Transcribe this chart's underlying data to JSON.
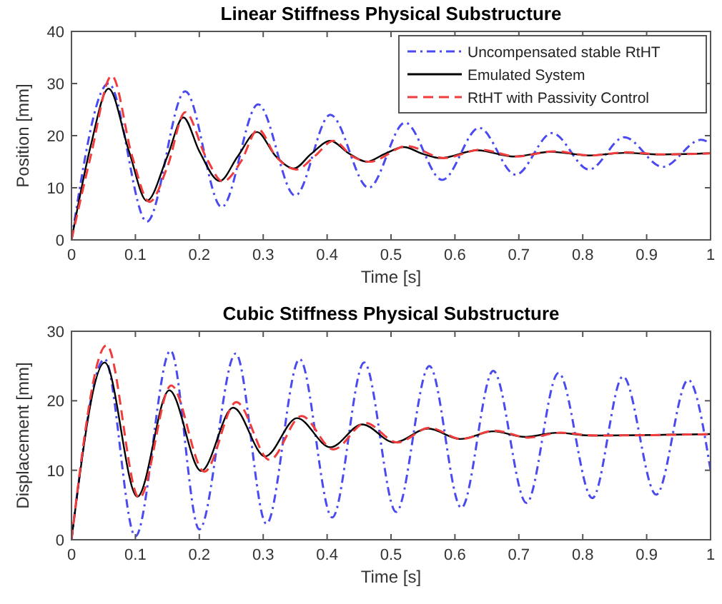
{
  "chart_data": [
    {
      "type": "line",
      "title": "Linear Stiffness Physical Substructure",
      "xlabel": "Time [s]",
      "ylabel": "Position [mm]",
      "xlim": [
        0,
        1
      ],
      "xticks": [
        0,
        0.1,
        0.2,
        0.3,
        0.4,
        0.5,
        0.6,
        0.7,
        0.8,
        0.9,
        1
      ],
      "ylim": [
        0,
        40
      ],
      "yticks": [
        0,
        10,
        20,
        30,
        40
      ],
      "legend": "top right",
      "grid": false,
      "series": [
        {
          "name": "Uncompensated stable RtHT",
          "color": "#4a4af0",
          "line_style": "dotted",
          "x": [
            0,
            0.058,
            0.118,
            0.178,
            0.235,
            0.292,
            0.35,
            0.405,
            0.465,
            0.522,
            0.58,
            0.638,
            0.695,
            0.752,
            0.81,
            0.865,
            0.925,
            0.985,
            1
          ],
          "values": [
            0,
            30,
            3.5,
            28.5,
            6.3,
            26,
            8.5,
            24,
            10,
            22.5,
            11.5,
            21.5,
            12.5,
            20.5,
            13.5,
            19.7,
            14,
            19.2,
            18.5
          ]
        },
        {
          "name": "Emulated System",
          "color": "#000000",
          "line_style": "solid",
          "x": [
            0,
            0.03,
            0.058,
            0.09,
            0.118,
            0.15,
            0.175,
            0.2,
            0.232,
            0.26,
            0.29,
            0.32,
            0.348,
            0.375,
            0.405,
            0.435,
            0.462,
            0.49,
            0.52,
            0.55,
            0.578,
            0.635,
            0.692,
            0.75,
            0.81,
            0.865,
            0.92,
            1
          ],
          "values": [
            0,
            18,
            29,
            17,
            7.5,
            16,
            23.5,
            17,
            11.3,
            16,
            20.7,
            16,
            13.7,
            16.5,
            19,
            16.5,
            15,
            16.5,
            17.8,
            16.5,
            15.7,
            17.2,
            16,
            16.9,
            16.2,
            16.7,
            16.4,
            16.6
          ]
        },
        {
          "name": "RtHT with Passivity Control",
          "color": "#f03c3c",
          "line_style": "dashed",
          "x": [
            0,
            0.03,
            0.063,
            0.095,
            0.122,
            0.15,
            0.178,
            0.21,
            0.237,
            0.265,
            0.292,
            0.32,
            0.352,
            0.38,
            0.41,
            0.44,
            0.467,
            0.525,
            0.583,
            0.64,
            0.697,
            0.755,
            0.812,
            0.87,
            0.925,
            1
          ],
          "values": [
            0,
            16,
            31.5,
            16,
            7.3,
            14,
            24.5,
            16,
            11.2,
            15,
            21.2,
            16,
            13.5,
            16,
            19,
            16,
            15,
            18,
            15.7,
            17.3,
            16,
            17,
            16.2,
            16.8,
            16.4,
            16.6
          ]
        }
      ]
    },
    {
      "type": "line",
      "title": "Cubic Stiffness Physical Substructure",
      "xlabel": "Time [s]",
      "ylabel": "Displacement [mm]",
      "xlim": [
        0,
        1
      ],
      "xticks": [
        0,
        0.1,
        0.2,
        0.3,
        0.4,
        0.5,
        0.6,
        0.7,
        0.8,
        0.9,
        1
      ],
      "ylim": [
        0,
        30
      ],
      "yticks": [
        0,
        10,
        20,
        30
      ],
      "grid": false,
      "series": [
        {
          "color": "#4a4af0",
          "line_style": "dotted",
          "x": [
            0,
            0.052,
            0.1,
            0.155,
            0.2,
            0.257,
            0.305,
            0.357,
            0.408,
            0.458,
            0.508,
            0.56,
            0.61,
            0.66,
            0.712,
            0.762,
            0.815,
            0.863,
            0.915,
            0.965,
            1
          ],
          "values": [
            0,
            26,
            0.5,
            27.2,
            1.5,
            26.8,
            2.3,
            26,
            3.2,
            25.5,
            4,
            25,
            4.6,
            24.3,
            5.3,
            24,
            6,
            23.5,
            6.5,
            23,
            10
          ]
        },
        {
          "color": "#000000",
          "line_style": "solid",
          "x": [
            0,
            0.052,
            0.103,
            0.153,
            0.203,
            0.253,
            0.303,
            0.353,
            0.405,
            0.455,
            0.505,
            0.558,
            0.608,
            0.66,
            0.71,
            0.76,
            0.81,
            1
          ],
          "values": [
            0,
            25.5,
            6.2,
            21.5,
            9.9,
            19,
            12,
            17.5,
            13.3,
            16.6,
            14,
            16,
            14.5,
            15.6,
            14.8,
            15.4,
            15,
            15.2
          ]
        },
        {
          "color": "#f03c3c",
          "line_style": "dashed",
          "x": [
            0,
            0.055,
            0.106,
            0.156,
            0.208,
            0.258,
            0.31,
            0.36,
            0.41,
            0.46,
            0.51,
            0.56,
            0.61,
            0.662,
            0.715,
            0.765,
            0.82,
            1
          ],
          "values": [
            0,
            28,
            6,
            22.2,
            9.8,
            19.8,
            11.5,
            17.8,
            13,
            16.8,
            14,
            16.1,
            14.5,
            15.7,
            14.7,
            15.4,
            15,
            15.2
          ]
        }
      ]
    }
  ]
}
